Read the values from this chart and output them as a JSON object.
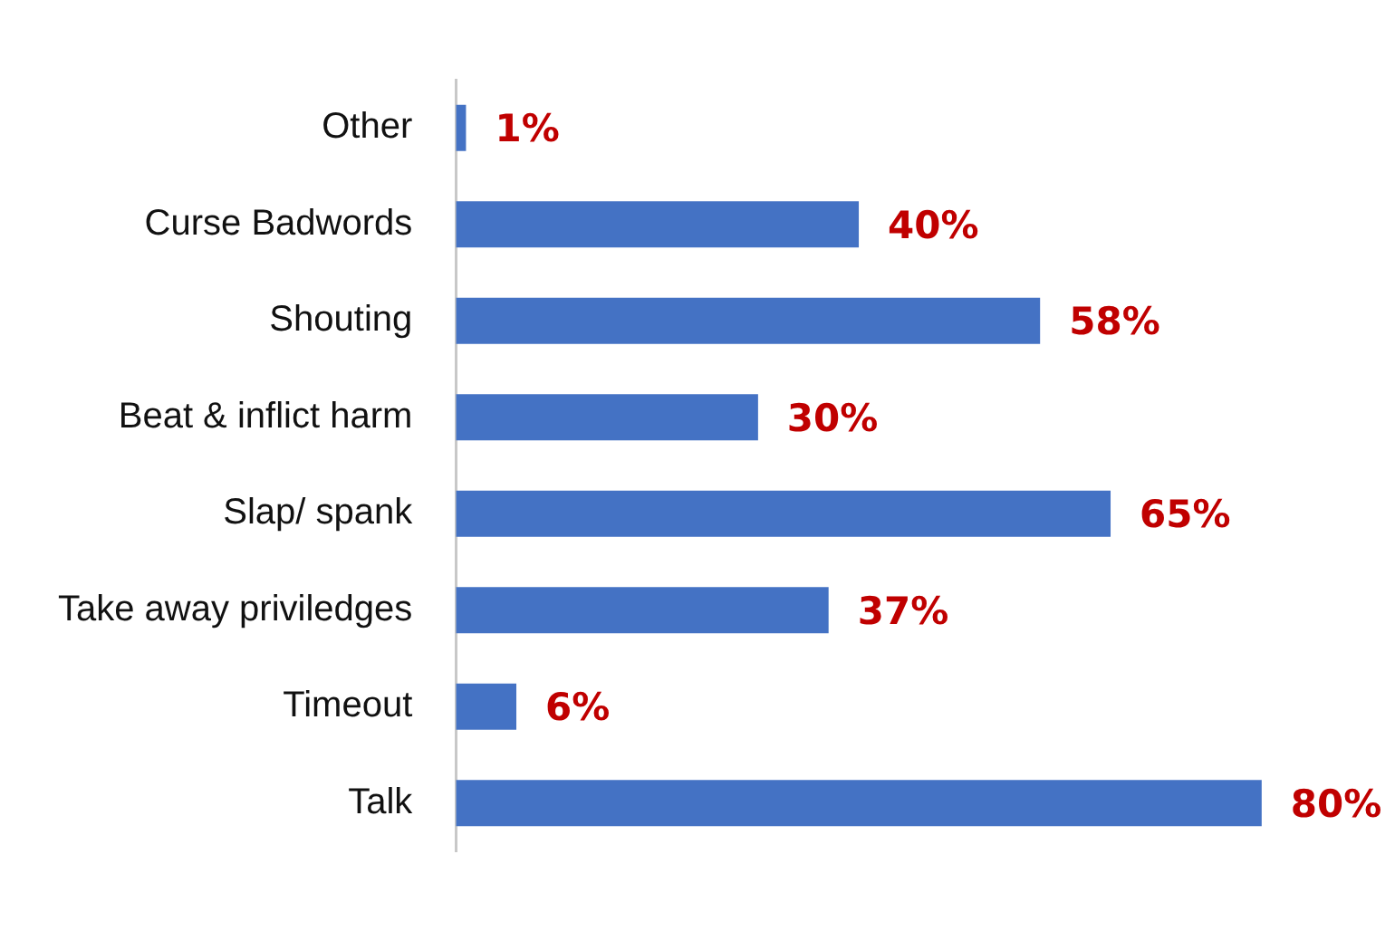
{
  "chart_data": {
    "type": "bar",
    "orientation": "horizontal",
    "categories": [
      "Other",
      "Curse Badwords",
      "Shouting",
      "Beat & inflict harm",
      "Slap/ spank",
      "Take away priviledges",
      "Timeout",
      "Talk"
    ],
    "values": [
      1,
      40,
      58,
      30,
      65,
      37,
      6,
      80
    ],
    "color": "#4472c4",
    "value_labels": [
      "1%",
      "40%",
      "58%",
      "30%",
      "65%",
      "37%",
      "6%",
      "80%"
    ]
  }
}
